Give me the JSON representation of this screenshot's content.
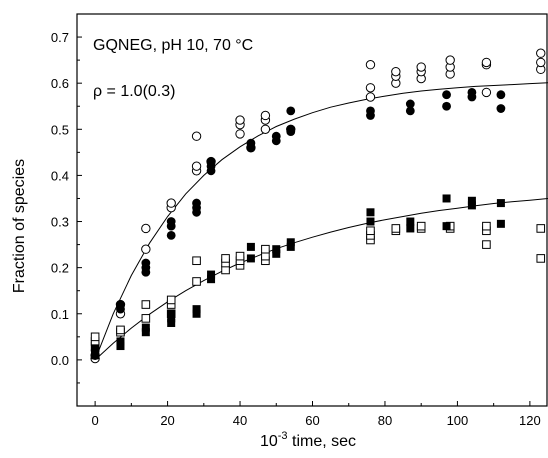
{
  "chart_data": {
    "type": "scatter",
    "title": "",
    "xlabel_prefix": "10",
    "xlabel_exponent": "-3",
    "xlabel_suffix": " time, sec",
    "ylabel": "Fraction of species",
    "xlim": [
      -5,
      125
    ],
    "ylim": [
      -0.1,
      0.75
    ],
    "x_ticks": [
      0,
      20,
      40,
      60,
      80,
      100,
      120
    ],
    "x_tick_labels": [
      "0",
      "20",
      "40",
      "60",
      "80",
      "100",
      "120"
    ],
    "y_ticks": [
      0.0,
      0.1,
      0.2,
      0.3,
      0.4,
      0.5,
      0.6,
      0.7
    ],
    "y_tick_labels": [
      "0.0",
      "0.1",
      "0.2",
      "0.3",
      "0.4",
      "0.5",
      "0.6",
      "0.7"
    ],
    "grid": false,
    "annotations": {
      "line1": "GQNEG, pH 10, 70 °C",
      "line2": "ρ = 1.0(0.3)"
    },
    "series": [
      {
        "marker": "open-circle",
        "points": [
          [
            0,
            0.003
          ],
          [
            0,
            0.01
          ],
          [
            7,
            0.1
          ],
          [
            7,
            0.12
          ],
          [
            14,
            0.24
          ],
          [
            14,
            0.285
          ],
          [
            21,
            0.33
          ],
          [
            21,
            0.34
          ],
          [
            28,
            0.41
          ],
          [
            28,
            0.42
          ],
          [
            28,
            0.485
          ],
          [
            32,
            0.43
          ],
          [
            40,
            0.49
          ],
          [
            40,
            0.51
          ],
          [
            40,
            0.52
          ],
          [
            43,
            0.46
          ],
          [
            47,
            0.5
          ],
          [
            47,
            0.52
          ],
          [
            47,
            0.53
          ],
          [
            54,
            0.5
          ],
          [
            76,
            0.57
          ],
          [
            76,
            0.59
          ],
          [
            76,
            0.64
          ],
          [
            83,
            0.6
          ],
          [
            83,
            0.615
          ],
          [
            83,
            0.625
          ],
          [
            90,
            0.61
          ],
          [
            90,
            0.625
          ],
          [
            90,
            0.635
          ],
          [
            98,
            0.62
          ],
          [
            98,
            0.635
          ],
          [
            98,
            0.65
          ],
          [
            108,
            0.58
          ],
          [
            108,
            0.64
          ],
          [
            108,
            0.645
          ],
          [
            123,
            0.63
          ],
          [
            123,
            0.645
          ],
          [
            123,
            0.665
          ]
        ]
      },
      {
        "marker": "filled-circle",
        "points": [
          [
            0,
            0.01
          ],
          [
            0,
            0.02
          ],
          [
            7,
            0.11
          ],
          [
            7,
            0.12
          ],
          [
            14,
            0.19
          ],
          [
            14,
            0.2
          ],
          [
            14,
            0.21
          ],
          [
            21,
            0.27
          ],
          [
            21,
            0.29
          ],
          [
            21,
            0.3
          ],
          [
            28,
            0.32
          ],
          [
            28,
            0.33
          ],
          [
            28,
            0.34
          ],
          [
            32,
            0.41
          ],
          [
            32,
            0.42
          ],
          [
            32,
            0.43
          ],
          [
            43,
            0.46
          ],
          [
            43,
            0.47
          ],
          [
            50,
            0.475
          ],
          [
            50,
            0.485
          ],
          [
            54,
            0.495
          ],
          [
            54,
            0.5
          ],
          [
            54,
            0.54
          ],
          [
            76,
            0.53
          ],
          [
            76,
            0.54
          ],
          [
            87,
            0.54
          ],
          [
            87,
            0.555
          ],
          [
            97,
            0.55
          ],
          [
            97,
            0.575
          ],
          [
            104,
            0.57
          ],
          [
            104,
            0.58
          ],
          [
            112,
            0.545
          ],
          [
            112,
            0.575
          ]
        ]
      },
      {
        "marker": "open-square",
        "points": [
          [
            0,
            0.03
          ],
          [
            0,
            0.04
          ],
          [
            0,
            0.05
          ],
          [
            7,
            0.06
          ],
          [
            7,
            0.065
          ],
          [
            14,
            0.09
          ],
          [
            14,
            0.12
          ],
          [
            21,
            0.1
          ],
          [
            21,
            0.12
          ],
          [
            21,
            0.13
          ],
          [
            28,
            0.17
          ],
          [
            28,
            0.215
          ],
          [
            36,
            0.195
          ],
          [
            36,
            0.21
          ],
          [
            36,
            0.22
          ],
          [
            40,
            0.205
          ],
          [
            40,
            0.215
          ],
          [
            40,
            0.225
          ],
          [
            47,
            0.215
          ],
          [
            47,
            0.225
          ],
          [
            47,
            0.24
          ],
          [
            76,
            0.26
          ],
          [
            76,
            0.27
          ],
          [
            76,
            0.28
          ],
          [
            83,
            0.28
          ],
          [
            83,
            0.285
          ],
          [
            90,
            0.285
          ],
          [
            90,
            0.29
          ],
          [
            98,
            0.285
          ],
          [
            98,
            0.29
          ],
          [
            108,
            0.25
          ],
          [
            108,
            0.28
          ],
          [
            108,
            0.29
          ],
          [
            123,
            0.22
          ],
          [
            123,
            0.285
          ]
        ]
      },
      {
        "marker": "filled-square",
        "points": [
          [
            0,
            0.01
          ],
          [
            0,
            0.02
          ],
          [
            0,
            0.025
          ],
          [
            7,
            0.03
          ],
          [
            7,
            0.04
          ],
          [
            14,
            0.06
          ],
          [
            14,
            0.07
          ],
          [
            21,
            0.08
          ],
          [
            21,
            0.09
          ],
          [
            21,
            0.1
          ],
          [
            28,
            0.1
          ],
          [
            28,
            0.11
          ],
          [
            32,
            0.175
          ],
          [
            32,
            0.185
          ],
          [
            43,
            0.22
          ],
          [
            43,
            0.245
          ],
          [
            50,
            0.23
          ],
          [
            50,
            0.24
          ],
          [
            54,
            0.245
          ],
          [
            54,
            0.255
          ],
          [
            76,
            0.3
          ],
          [
            76,
            0.32
          ],
          [
            87,
            0.285
          ],
          [
            87,
            0.3
          ],
          [
            97,
            0.29
          ],
          [
            97,
            0.35
          ],
          [
            104,
            0.335
          ],
          [
            104,
            0.345
          ],
          [
            112,
            0.295
          ],
          [
            112,
            0.34
          ]
        ]
      }
    ],
    "fit_curves": [
      {
        "x": [
          0,
          5,
          10,
          15,
          20,
          25,
          30,
          35,
          40,
          45,
          50,
          55,
          60,
          65,
          70,
          75,
          80,
          85,
          90,
          95,
          100,
          105,
          110,
          115,
          120,
          125
        ],
        "y": [
          0.0,
          0.1,
          0.183,
          0.253,
          0.311,
          0.36,
          0.4,
          0.434,
          0.462,
          0.486,
          0.506,
          0.522,
          0.536,
          0.548,
          0.557,
          0.565,
          0.572,
          0.578,
          0.583,
          0.587,
          0.59,
          0.593,
          0.595,
          0.597,
          0.599,
          0.601
        ]
      },
      {
        "x": [
          0,
          5,
          10,
          15,
          20,
          25,
          30,
          35,
          40,
          45,
          50,
          55,
          60,
          65,
          70,
          75,
          80,
          85,
          90,
          95,
          100,
          105,
          110,
          115,
          120,
          125
        ],
        "y": [
          0.0,
          0.036,
          0.069,
          0.099,
          0.126,
          0.15,
          0.172,
          0.192,
          0.21,
          0.226,
          0.241,
          0.254,
          0.266,
          0.277,
          0.287,
          0.296,
          0.304,
          0.311,
          0.318,
          0.324,
          0.329,
          0.334,
          0.339,
          0.343,
          0.346,
          0.35
        ]
      }
    ]
  }
}
